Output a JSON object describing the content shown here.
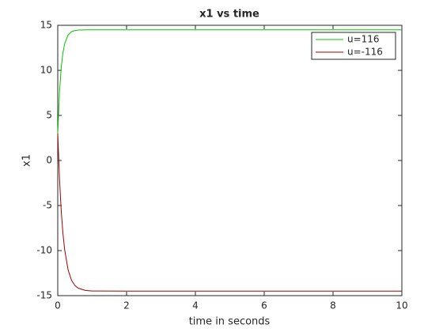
{
  "chart_data": {
    "type": "line",
    "title": "x1 vs time",
    "xlabel": "time in seconds",
    "ylabel": "x1",
    "x": [
      0,
      0.05,
      0.1,
      0.15,
      0.2,
      0.3,
      0.4,
      0.5,
      0.6,
      0.8,
      1,
      2,
      4,
      6,
      8,
      10
    ],
    "series": [
      {
        "name": "u=116",
        "color": "#00c800",
        "values": [
          3,
          7.52,
          10.27,
          11.93,
          12.94,
          13.93,
          14.29,
          14.42,
          14.47,
          14.5,
          14.5,
          14.5,
          14.5,
          14.5,
          14.5,
          14.5
        ]
      },
      {
        "name": "u=-116",
        "color": "#a00000",
        "values": [
          3,
          -1.95,
          -5.52,
          -8.06,
          -9.88,
          -12.13,
          -13.29,
          -13.88,
          -14.18,
          -14.42,
          -14.48,
          -14.5,
          -14.5,
          -14.5,
          -14.5,
          -14.5
        ]
      }
    ],
    "xlim": [
      0,
      10
    ],
    "xticks": [
      0,
      2,
      4,
      6,
      8,
      10
    ],
    "ylim": [
      -15,
      15
    ],
    "yticks": [
      -15,
      -10,
      -5,
      0,
      5,
      10,
      15
    ],
    "legend": "northeast"
  }
}
